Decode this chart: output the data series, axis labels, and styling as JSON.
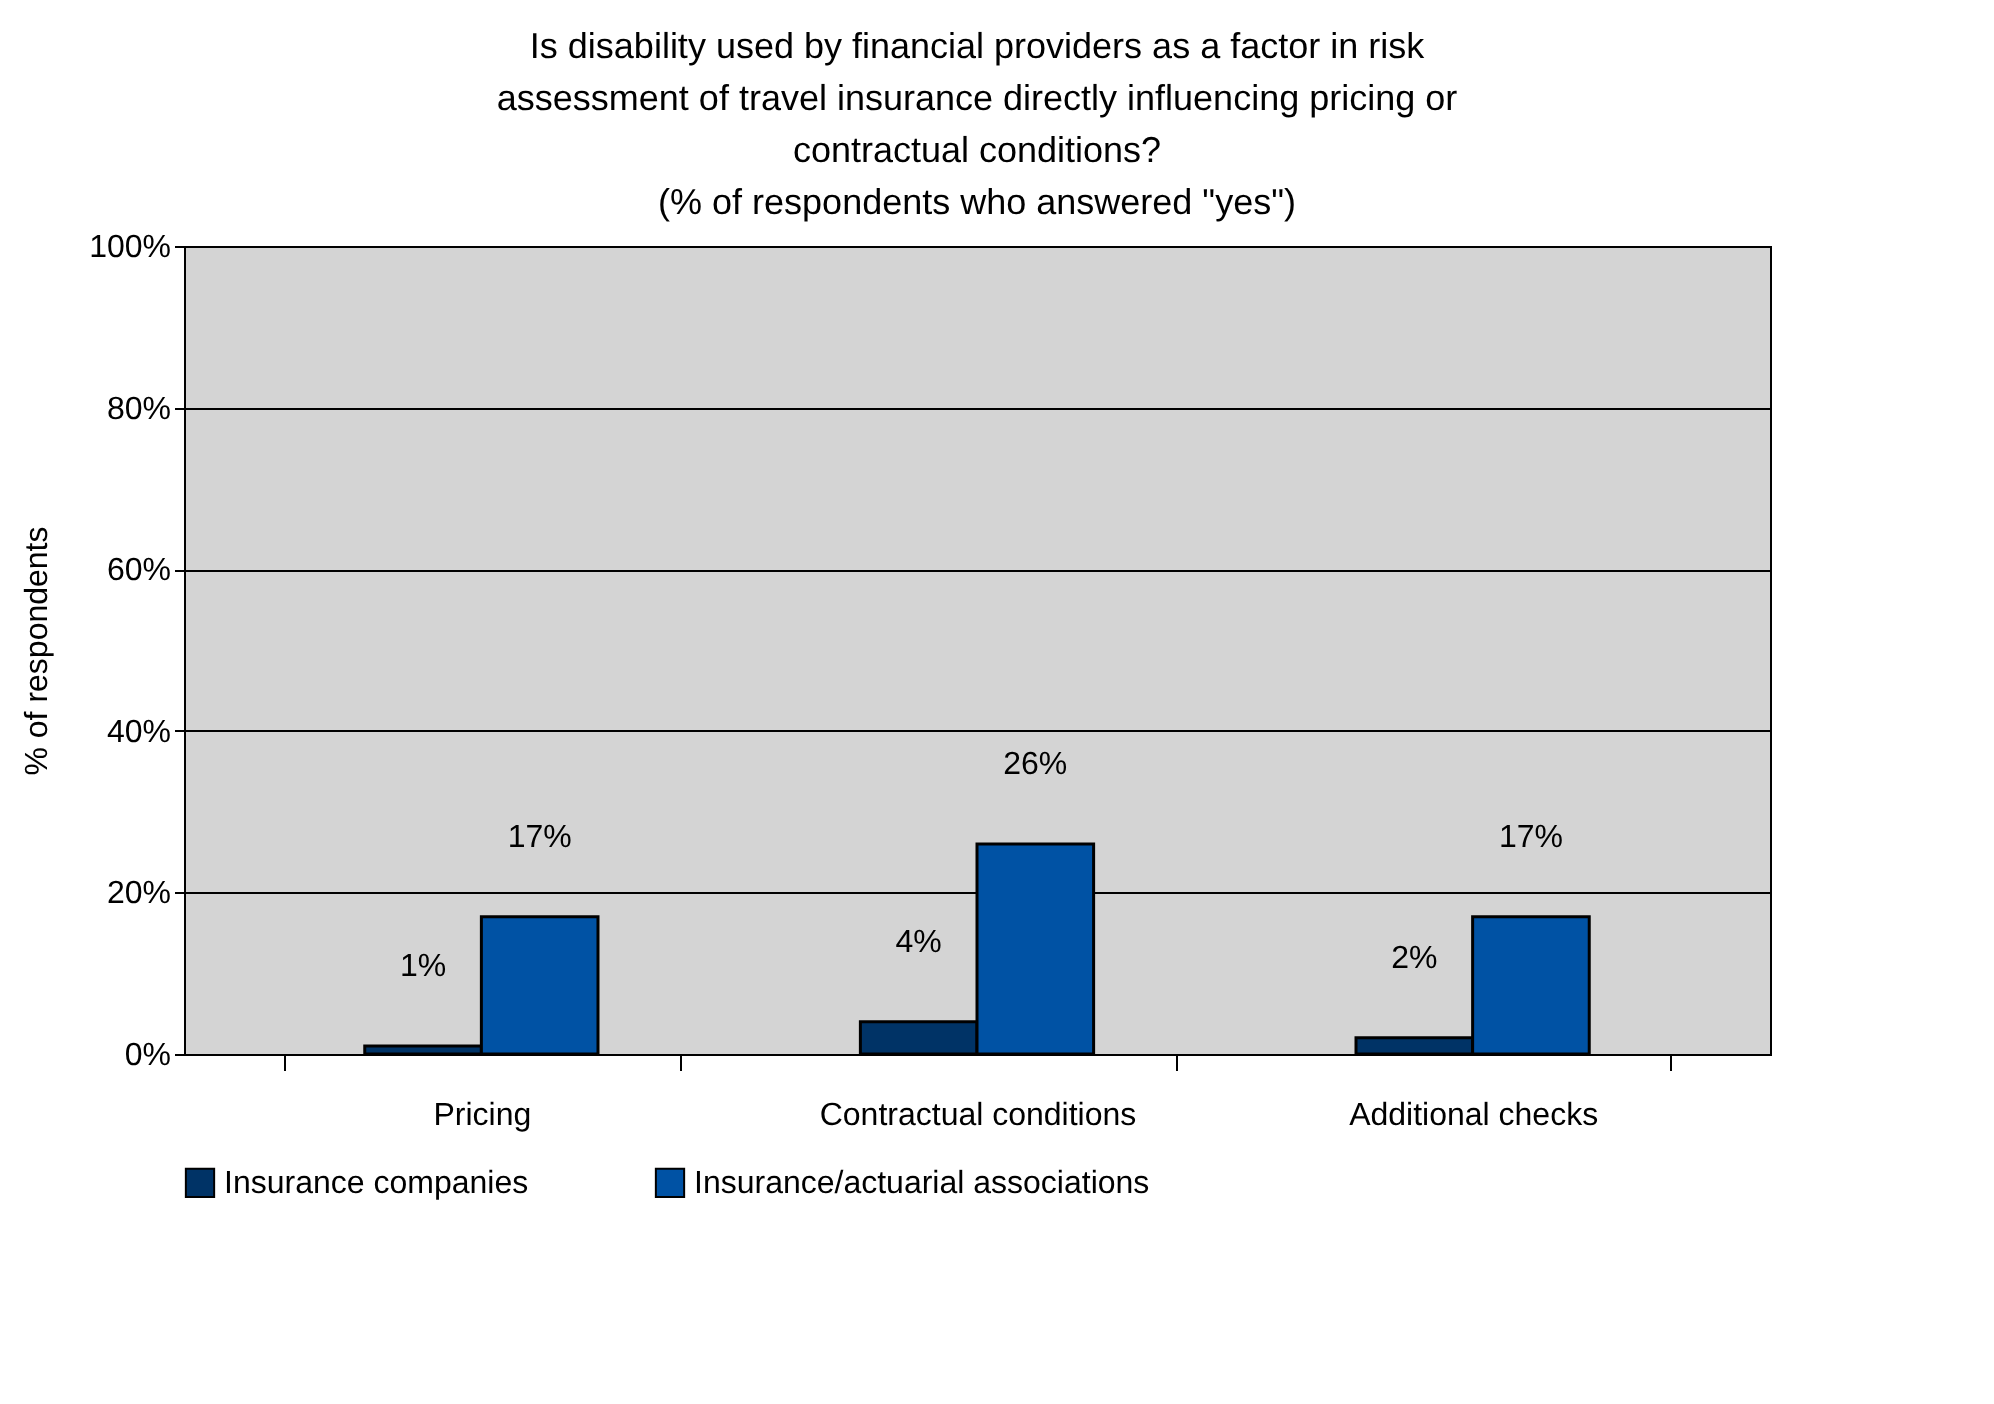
{
  "chart_data": {
    "type": "bar",
    "title": "Is disability used by financial providers as a factor in risk\nassessment of travel insurance directly influencing pricing or\ncontractual conditions?\n(% of respondents who answered \"yes\")",
    "ylabel": "% of respondents",
    "categories": [
      "Pricing",
      "Contractual conditions",
      "Additional checks"
    ],
    "series": [
      {
        "name": "Insurance companies",
        "color": "#003366",
        "values": [
          1,
          4,
          2
        ],
        "value_labels": [
          "1%",
          "4%",
          "2%"
        ]
      },
      {
        "name": "Insurance/actuarial associations",
        "color": "#0052a4",
        "values": [
          17,
          26,
          17
        ],
        "value_labels": [
          "17%",
          "26%",
          "17%"
        ]
      }
    ],
    "ylim": [
      0,
      100
    ],
    "yticks": [
      {
        "value": 0,
        "label": "0%"
      },
      {
        "value": 20,
        "label": "20%"
      },
      {
        "value": 40,
        "label": "40%"
      },
      {
        "value": 60,
        "label": "60%"
      },
      {
        "value": 80,
        "label": "80%"
      },
      {
        "value": 100,
        "label": "100%"
      }
    ],
    "grid": "y",
    "legend": "bottom"
  }
}
